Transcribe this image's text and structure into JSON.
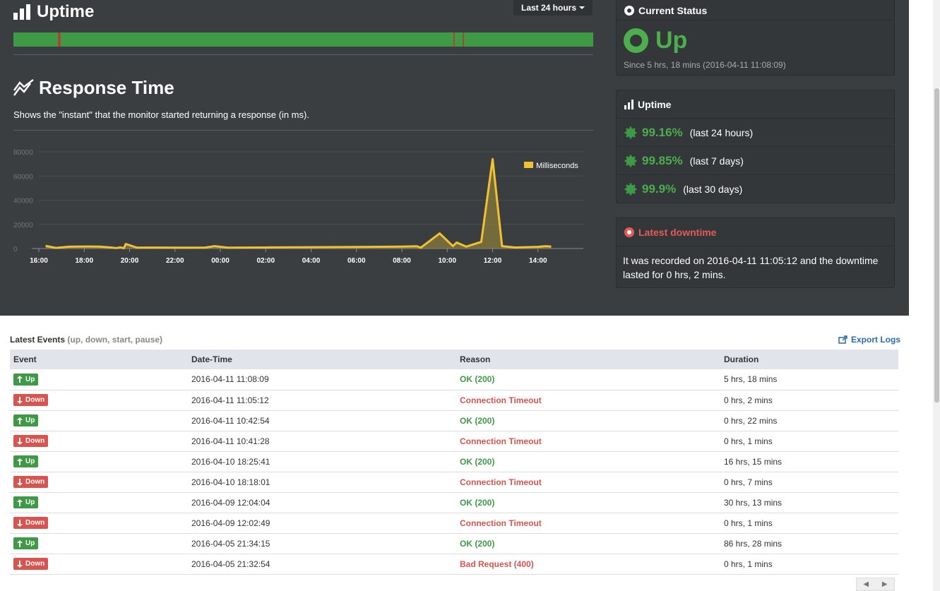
{
  "uptime_section": {
    "title": "Uptime",
    "range_label": "Last 24 hours",
    "bar_color_up": "#3f9a46",
    "bar_color_down": "#b0423c"
  },
  "response_time": {
    "title": "Response Time",
    "description": "Shows the \"instant\" that the monitor started returning a response (in ms)."
  },
  "chart_data": {
    "type": "area",
    "x_ticks": [
      "18:00",
      "20:00",
      "22:00",
      "00:00",
      "02:00",
      "04:00",
      "06:00",
      "08:00",
      "10:00",
      "12:00",
      "14:00",
      "16:00"
    ],
    "y_ticks": [
      "80000",
      "60000",
      "40000",
      "20000",
      "0"
    ],
    "ylim": [
      0,
      80000
    ],
    "legend": "Milliseconds",
    "legend_position": "top-right",
    "grid": true,
    "color": "#f0c233",
    "series": [
      {
        "name": "Milliseconds",
        "points": [
          {
            "t": "16:18",
            "ms": 2200
          },
          {
            "t": "16:45",
            "ms": 500
          },
          {
            "t": "17:20",
            "ms": 1500
          },
          {
            "t": "18:00",
            "ms": 1700
          },
          {
            "t": "18:40",
            "ms": 1600
          },
          {
            "t": "19:10",
            "ms": 900
          },
          {
            "t": "19:25",
            "ms": 400
          },
          {
            "t": "19:35",
            "ms": 1000
          },
          {
            "t": "19:45",
            "ms": 300
          },
          {
            "t": "19:50",
            "ms": 3800
          },
          {
            "t": "20:20",
            "ms": 700
          },
          {
            "t": "21:00",
            "ms": 800
          },
          {
            "t": "22:30",
            "ms": 700
          },
          {
            "t": "23:20",
            "ms": 800
          },
          {
            "t": "23:45",
            "ms": 2000
          },
          {
            "t": "00:20",
            "ms": 700
          },
          {
            "t": "02:00",
            "ms": 900
          },
          {
            "t": "04:00",
            "ms": 1100
          },
          {
            "t": "06:00",
            "ms": 1300
          },
          {
            "t": "08:00",
            "ms": 1600
          },
          {
            "t": "08:40",
            "ms": 1900
          },
          {
            "t": "08:50",
            "ms": 700
          },
          {
            "t": "09:40",
            "ms": 12500
          },
          {
            "t": "10:15",
            "ms": 2000
          },
          {
            "t": "10:25",
            "ms": 5000
          },
          {
            "t": "10:50",
            "ms": 1600
          },
          {
            "t": "11:30",
            "ms": 5500
          },
          {
            "t": "12:00",
            "ms": 74000
          },
          {
            "t": "12:25",
            "ms": 2000
          },
          {
            "t": "13:00",
            "ms": 900
          },
          {
            "t": "14:00",
            "ms": 1400
          },
          {
            "t": "14:20",
            "ms": 2000
          },
          {
            "t": "14:35",
            "ms": 1600
          }
        ]
      }
    ]
  },
  "current_status": {
    "title": "Current Status",
    "status": "Up",
    "since": "Since 5 hrs, 18 mins (2016-04-11 11:08:09)",
    "color": "#4cae4c"
  },
  "uptime_card": {
    "title": "Uptime",
    "rows": [
      {
        "pct": "99.16%",
        "period": "(last 24 hours)"
      },
      {
        "pct": "99.85%",
        "period": "(last 7 days)"
      },
      {
        "pct": "99.9%",
        "period": "(last 30 days)"
      }
    ]
  },
  "latest_downtime": {
    "title": "Latest downtime",
    "text": "It was recorded on 2016-04-11 11:05:12 and the downtime lasted for 0 hrs, 2 mins.",
    "color": "#e25b56"
  },
  "events": {
    "title": "Latest Events",
    "hint": "(up, down, start, pause)",
    "export_label": "Export Logs",
    "headers": [
      "Event",
      "Date-Time",
      "Reason",
      "Duration"
    ],
    "rows": [
      {
        "type": "up",
        "label": "Up",
        "datetime": "2016-04-11 11:08:09",
        "reason": "OK (200)",
        "duration": "5 hrs, 18 mins"
      },
      {
        "type": "down",
        "label": "Down",
        "datetime": "2016-04-11 11:05:12",
        "reason": "Connection Timeout",
        "duration": "0 hrs, 2 mins"
      },
      {
        "type": "up",
        "label": "Up",
        "datetime": "2016-04-11 10:42:54",
        "reason": "OK (200)",
        "duration": "0 hrs, 22 mins"
      },
      {
        "type": "down",
        "label": "Down",
        "datetime": "2016-04-11 10:41:28",
        "reason": "Connection Timeout",
        "duration": "0 hrs, 1 mins"
      },
      {
        "type": "up",
        "label": "Up",
        "datetime": "2016-04-10 18:25:41",
        "reason": "OK (200)",
        "duration": "16 hrs, 15 mins"
      },
      {
        "type": "down",
        "label": "Down",
        "datetime": "2016-04-10 18:18:01",
        "reason": "Connection Timeout",
        "duration": "0 hrs, 7 mins"
      },
      {
        "type": "up",
        "label": "Up",
        "datetime": "2016-04-09 12:04:04",
        "reason": "OK (200)",
        "duration": "30 hrs, 13 mins"
      },
      {
        "type": "down",
        "label": "Down",
        "datetime": "2016-04-09 12:02:49",
        "reason": "Connection Timeout",
        "duration": "0 hrs, 1 mins"
      },
      {
        "type": "up",
        "label": "Up",
        "datetime": "2016-04-05 21:34:15",
        "reason": "OK (200)",
        "duration": "86 hrs, 28 mins"
      },
      {
        "type": "down",
        "label": "Down",
        "datetime": "2016-04-05 21:32:54",
        "reason": "Bad Request (400)",
        "duration": "0 hrs, 1 mins"
      }
    ]
  },
  "pager": {
    "prev": "◀",
    "next": "▶"
  }
}
